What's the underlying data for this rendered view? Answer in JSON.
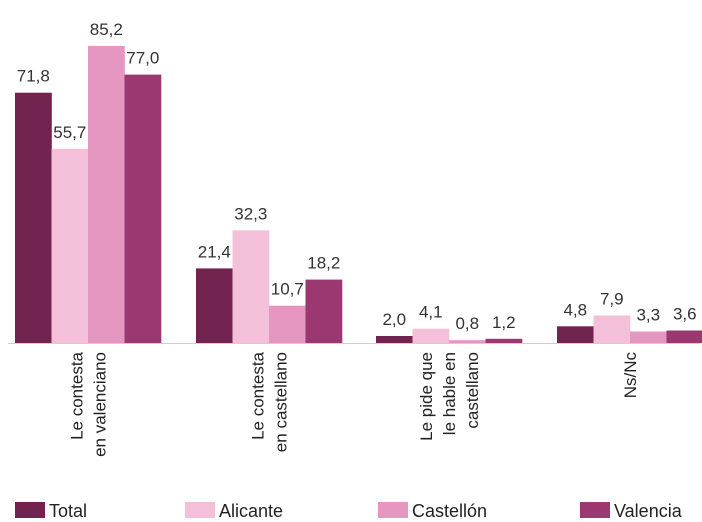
{
  "chart_data": {
    "type": "bar",
    "categories": [
      [
        "Le contesta",
        "en valenciano"
      ],
      [
        "Le contesta",
        "en castellano"
      ],
      [
        "Le pide que",
        "le hable en",
        "castellano"
      ],
      [
        "Ns/Nc"
      ]
    ],
    "series": [
      {
        "name": "Total",
        "color": "#732350",
        "values": [
          71.8,
          21.4,
          2.0,
          4.8
        ],
        "labels": [
          "71,8",
          "21,4",
          "2,0",
          "4,8"
        ]
      },
      {
        "name": "Alicante",
        "color": "#f4bfd8",
        "values": [
          55.7,
          32.3,
          4.1,
          7.9
        ],
        "labels": [
          "55,7",
          "32,3",
          "4,1",
          "7,9"
        ]
      },
      {
        "name": "Castellón",
        "color": "#e597c2",
        "values": [
          85.2,
          10.7,
          0.8,
          3.3
        ],
        "labels": [
          "85,2",
          "10,7",
          "0,8",
          "3,3"
        ]
      },
      {
        "name": "Valencia",
        "color": "#9b3771",
        "values": [
          77.0,
          18.2,
          1.2,
          3.6
        ],
        "labels": [
          "77,0",
          "18,2",
          "1,2",
          "3,6"
        ]
      }
    ],
    "ylim": [
      0,
      85.2
    ],
    "grid": false,
    "legend": "bottom"
  }
}
